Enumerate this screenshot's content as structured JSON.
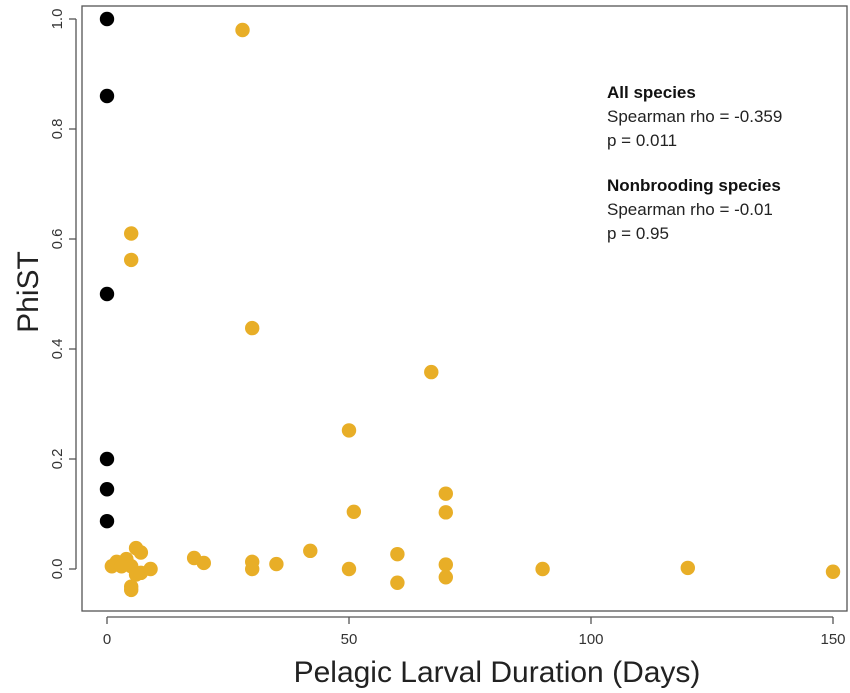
{
  "chart_data": {
    "type": "scatter",
    "xlabel": "Pelagic Larval Duration (Days)",
    "ylabel": "PhiST",
    "xlim": [
      0,
      150
    ],
    "ylim": [
      -0.05,
      1.0
    ],
    "x_ticks": [
      0,
      50,
      100,
      150
    ],
    "y_ticks": [
      0.0,
      0.2,
      0.4,
      0.6,
      0.8,
      1.0
    ],
    "x_tick_labels": [
      "0",
      "50",
      "100",
      "150"
    ],
    "y_tick_labels": [
      "0.0",
      "0.2",
      "0.4",
      "0.6",
      "0.8",
      "1.0"
    ],
    "grid": false,
    "series": [
      {
        "color": "#000000",
        "points": [
          [
            0,
            1.0
          ],
          [
            0,
            0.86
          ],
          [
            0,
            0.5
          ],
          [
            0,
            0.2
          ],
          [
            0,
            0.145
          ],
          [
            0,
            0.087
          ]
        ]
      },
      {
        "color": "#E8AE27",
        "points": [
          [
            28,
            0.98
          ],
          [
            5,
            0.61
          ],
          [
            5,
            0.562
          ],
          [
            30,
            0.438
          ],
          [
            67,
            0.358
          ],
          [
            50,
            0.252
          ],
          [
            70,
            0.137
          ],
          [
            51,
            0.104
          ],
          [
            70,
            0.103
          ],
          [
            42,
            0.033
          ],
          [
            60,
            0.027
          ],
          [
            18,
            0.02
          ],
          [
            20,
            0.011
          ],
          [
            30,
            0.013
          ],
          [
            30,
            0.0
          ],
          [
            35,
            0.009
          ],
          [
            50,
            0.0
          ],
          [
            60,
            -0.025
          ],
          [
            70,
            0.008
          ],
          [
            70,
            -0.015
          ],
          [
            90,
            0.0
          ],
          [
            120,
            0.002
          ],
          [
            150,
            -0.005
          ],
          [
            1,
            0.005
          ],
          [
            2,
            0.013
          ],
          [
            4,
            0.018
          ],
          [
            5,
            0.005
          ],
          [
            6,
            0.038
          ],
          [
            6,
            -0.01
          ],
          [
            7,
            0.03
          ],
          [
            7,
            -0.007
          ],
          [
            9,
            0.0
          ],
          [
            5,
            -0.032
          ],
          [
            5,
            -0.038
          ],
          [
            3,
            0.005
          ]
        ]
      }
    ],
    "annotations": [
      {
        "title": "All species",
        "lines": [
          "Spearman rho = -0.359",
          "p = 0.011"
        ]
      },
      {
        "title": "Nonbrooding species",
        "lines": [
          "Spearman rho = -0.01",
          "p = 0.95"
        ]
      }
    ]
  }
}
